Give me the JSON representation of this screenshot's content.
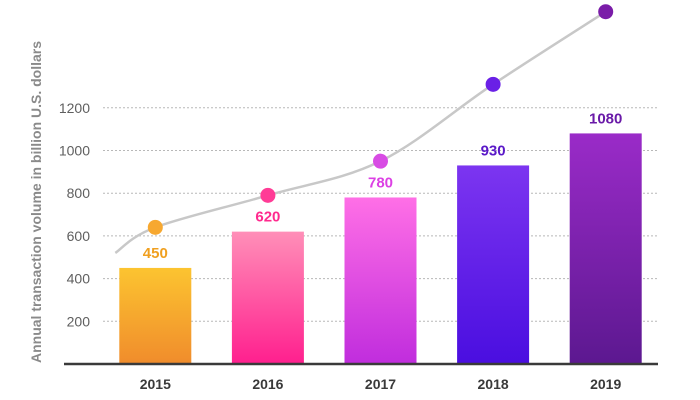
{
  "chart_data": {
    "type": "bar",
    "title": "",
    "xlabel": "",
    "ylabel": "Annual transaction volume in billion U.S. dollars",
    "categories": [
      "2015",
      "2016",
      "2017",
      "2018",
      "2019"
    ],
    "values": [
      450,
      620,
      780,
      930,
      1080
    ],
    "value_labels": [
      "450",
      "620",
      "780",
      "930",
      "1080"
    ],
    "ylim": [
      0,
      1250
    ],
    "yticks": [
      200,
      400,
      600,
      800,
      1000,
      1200
    ],
    "ytick_labels": [
      "200",
      "400",
      "600",
      "800",
      "1000",
      "1200"
    ],
    "grid": true,
    "bar_gradients": [
      [
        "#fcc430",
        "#f08c2c"
      ],
      [
        "#ff8fb8",
        "#ff1f8e"
      ],
      [
        "#ff6fe6",
        "#c02ddd"
      ],
      [
        "#7c35f0",
        "#4a0ee0"
      ],
      [
        "#9a2bc8",
        "#5c1890"
      ]
    ],
    "label_colors": [
      "#f0a020",
      "#ff2a8e",
      "#dc40e4",
      "#5a18c8",
      "#6a1aa8"
    ],
    "trend_line": {
      "points": [
        640,
        790,
        950,
        1310,
        1650
      ],
      "marker_colors": [
        "#f7a830",
        "#ff3c96",
        "#d84ce4",
        "#6a20e6",
        "#7a1ca8"
      ],
      "line_color": "#c8c8c8"
    }
  }
}
